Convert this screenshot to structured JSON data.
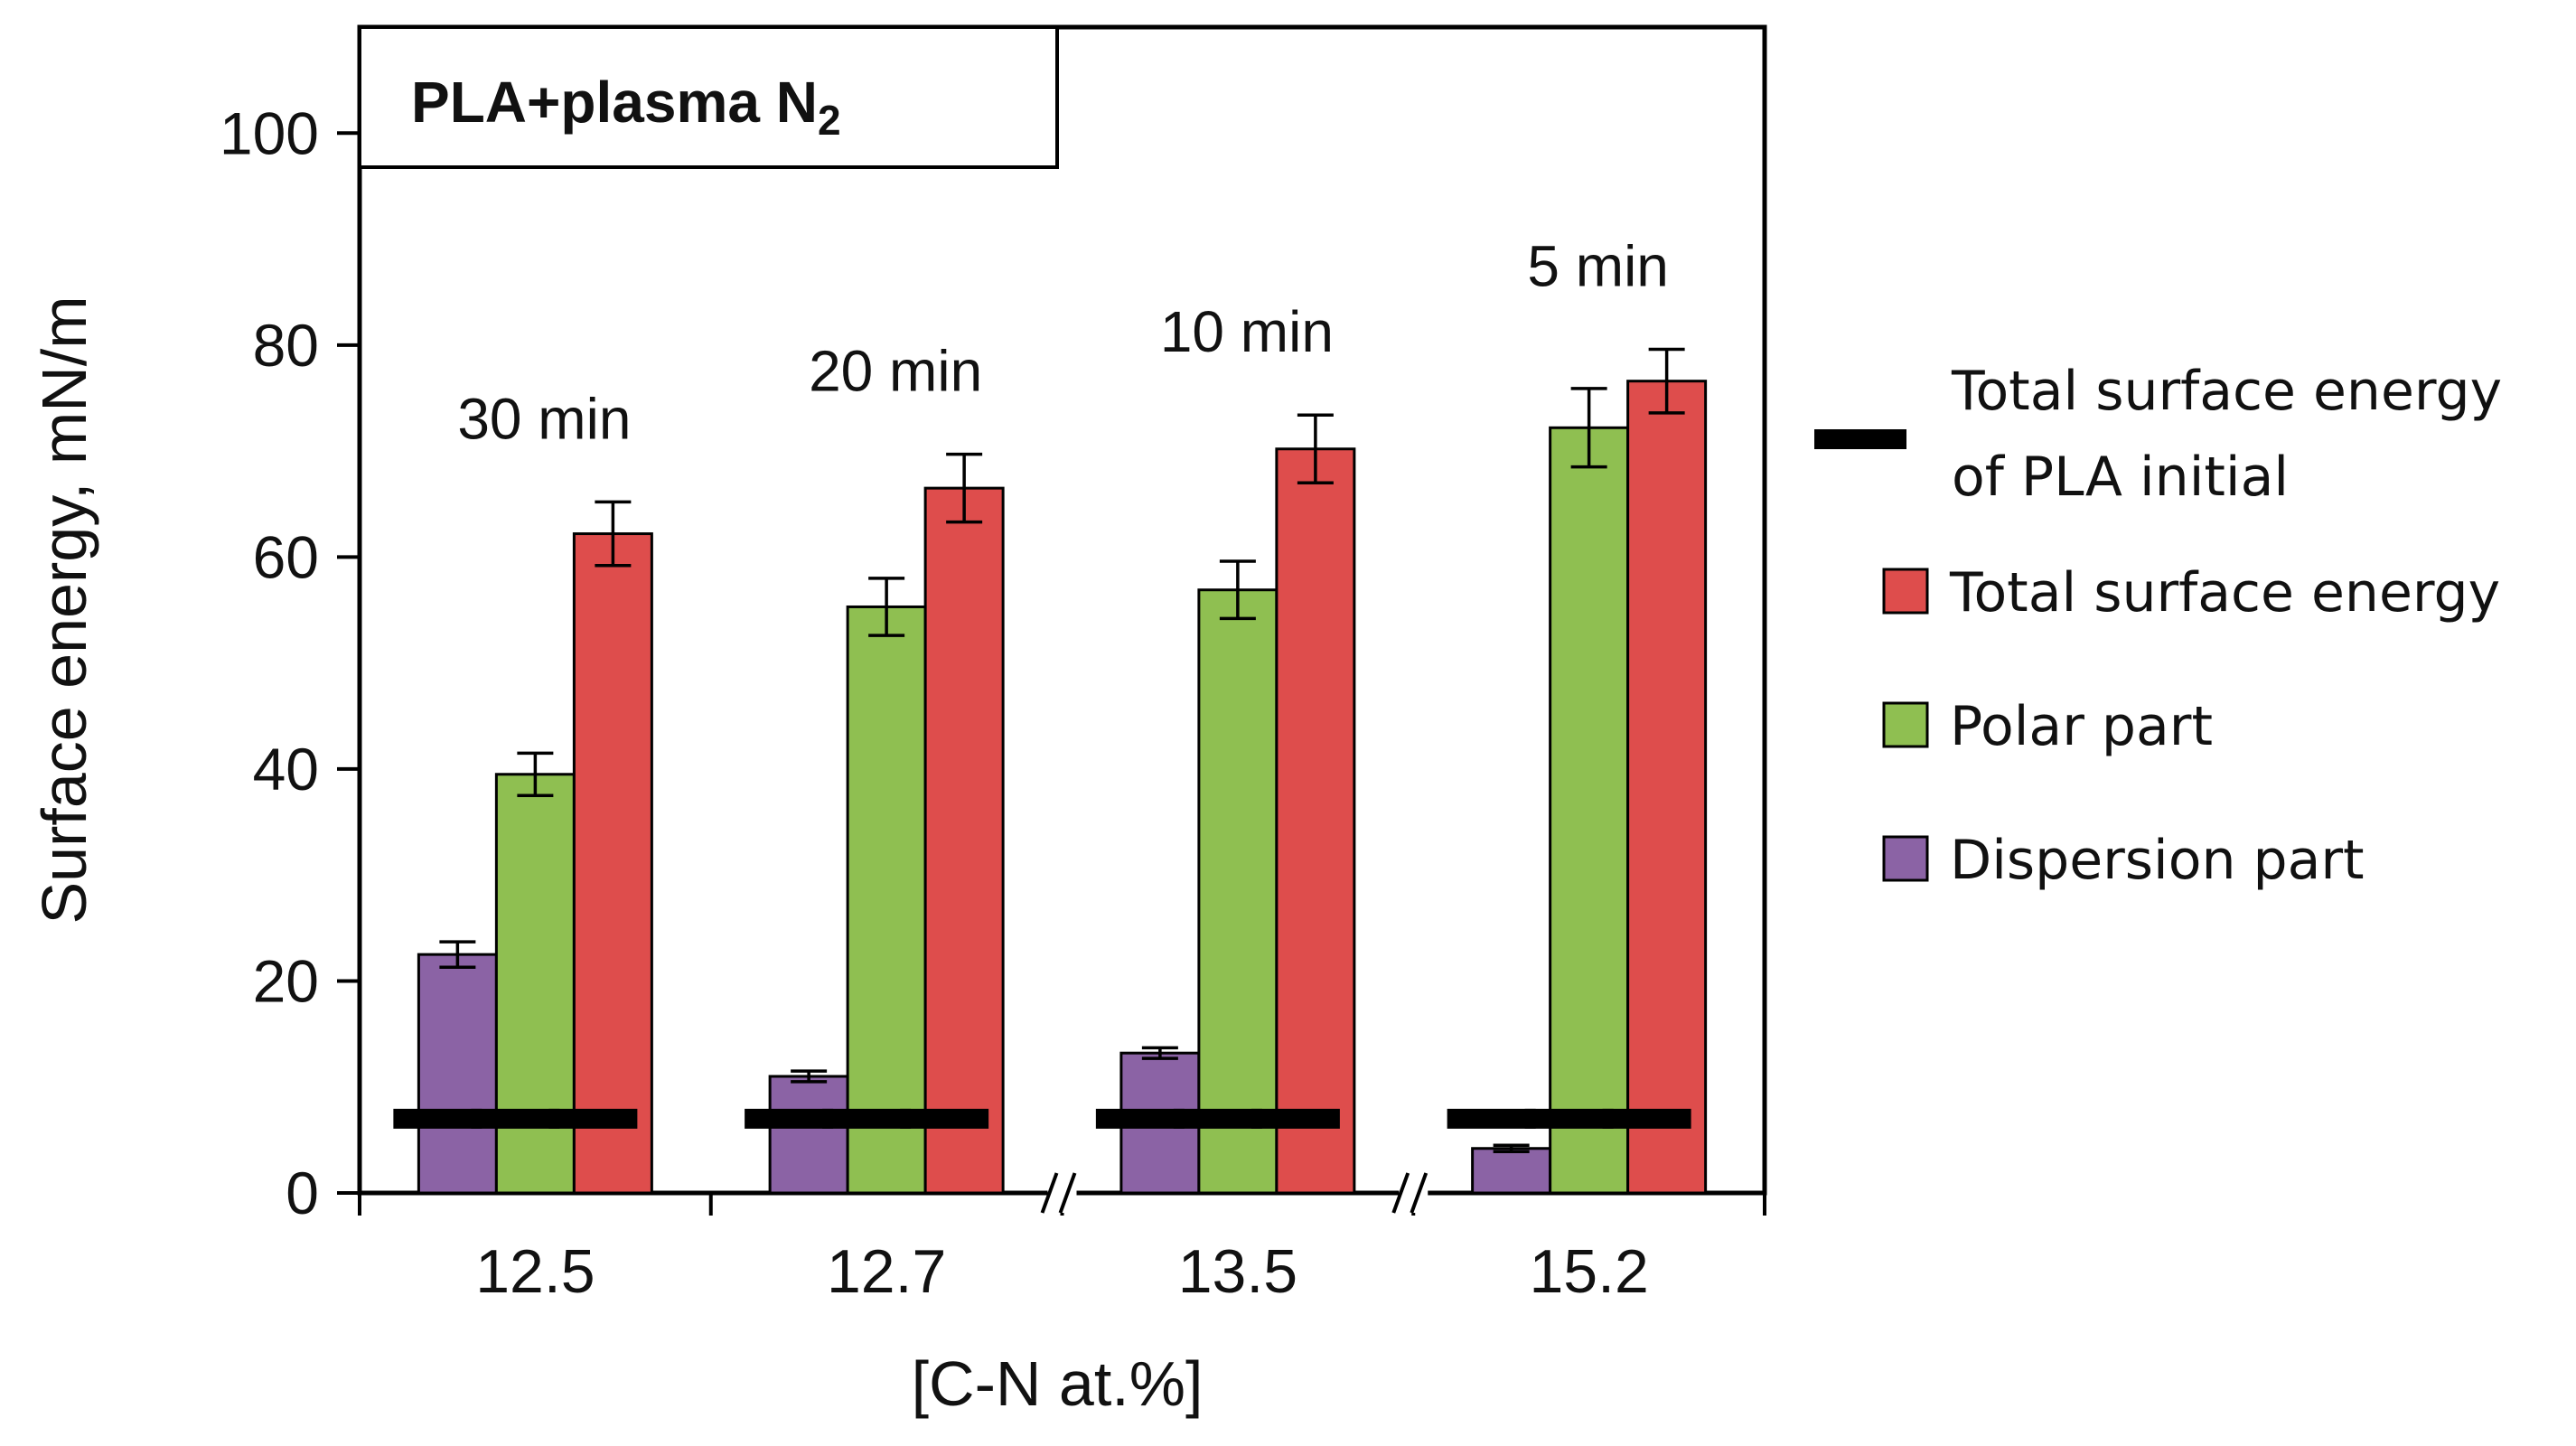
{
  "colors": {
    "dispersion": "#8b63a5",
    "polar": "#8fbf51",
    "total": "#de4d4c",
    "reference": "#000000",
    "axis": "#000000"
  },
  "chart_data": {
    "type": "bar",
    "title_box": {
      "main": "PLA+plasma N",
      "subscript": "2"
    },
    "ylabel": "Surface energy, mN/m",
    "xlabel": "[C-N at.%]",
    "ylim": [
      0,
      110
    ],
    "yticks": [
      0,
      20,
      40,
      60,
      80,
      100
    ],
    "categories": [
      "12.5",
      "12.7",
      "13.5",
      "15.2"
    ],
    "annotations": [
      "30 min",
      "20 min",
      "10 min",
      "5 min"
    ],
    "axis_breaks_between": [
      [
        1,
        2
      ],
      [
        2,
        3
      ]
    ],
    "series": [
      {
        "name": "Dispersion part",
        "key": "dispersion",
        "values": [
          22.5,
          11.0,
          13.2,
          4.2
        ],
        "errors": [
          1.2,
          0.5,
          0.5,
          0.3
        ]
      },
      {
        "name": "Polar part",
        "key": "polar",
        "values": [
          39.5,
          55.3,
          56.9,
          72.2
        ],
        "errors": [
          2.0,
          2.7,
          2.7,
          3.7
        ]
      },
      {
        "name": "Total surface energy",
        "key": "total",
        "values": [
          62.2,
          66.5,
          70.2,
          76.6
        ],
        "errors": [
          3.0,
          3.2,
          3.2,
          3.0
        ]
      }
    ],
    "reference_line": {
      "name_line1": "Total surface energy",
      "name_line2": "of PLA initial",
      "value": 7.0
    },
    "grid": false,
    "legend_placement": "right"
  }
}
